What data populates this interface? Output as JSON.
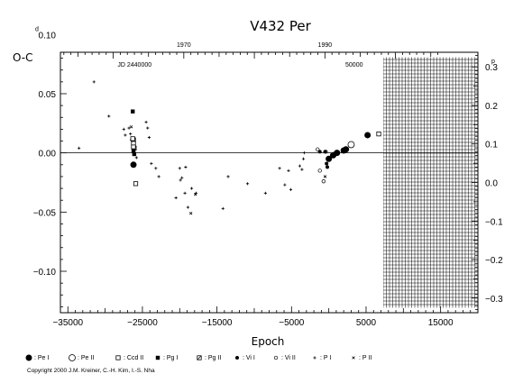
{
  "chart_data": {
    "type": "scatter",
    "title": "V432 Per",
    "xlabel": "Epoch",
    "ylabel": "O-C",
    "ylabel_unit": "d",
    "y2label_unit": "p",
    "xlim": [
      -36000,
      20000
    ],
    "ylim": [
      -0.135,
      0.085
    ],
    "y2lim": [
      -0.338,
      0.338
    ],
    "x_ticks": [
      -35000,
      -25000,
      -15000,
      -5000,
      5000,
      15000
    ],
    "x_tick_labels": [
      "−35000",
      "−25000",
      "−15000",
      "−5000",
      "5000",
      "15000"
    ],
    "y_ticks": [
      0.1,
      0.05,
      0.0,
      -0.05,
      -0.1
    ],
    "y_tick_labels": [
      "0.10",
      "0.05",
      "0.00",
      "−0.05",
      "−0.10"
    ],
    "y2_ticks": [
      0.3,
      0.2,
      0.1,
      0.0,
      -0.1,
      -0.2,
      -0.3
    ],
    "y2_tick_labels": [
      "0.3",
      "0.2",
      "0.1",
      "0.0",
      "−0.1",
      "−0.2",
      "−0.3"
    ],
    "top_axis": {
      "years": [
        {
          "value": 1970,
          "epoch": -19450
        },
        {
          "value": 1990,
          "epoch": -520
        }
      ],
      "jd": [
        {
          "label": "JD 2440000",
          "epoch": -26050
        },
        {
          "label": "50000",
          "epoch": 3400
        }
      ]
    },
    "future_hatch_from": 7300,
    "grid": false,
    "series": [
      {
        "name": "Pe I",
        "marker": "filled-circle",
        "points": [
          [
            -26200,
            -0.01
          ],
          [
            0,
            -0.005
          ],
          [
            600,
            -0.002
          ],
          [
            1100,
            0.0
          ],
          [
            2000,
            0.002
          ],
          [
            2300,
            0.003
          ],
          [
            5200,
            0.015
          ]
        ]
      },
      {
        "name": "Pe II",
        "marker": "open-circle",
        "points": [
          [
            3000,
            0.007
          ]
        ]
      },
      {
        "name": "Ccd II",
        "marker": "open-square",
        "points": [
          [
            -26300,
            0.012
          ],
          [
            -26200,
            0.008
          ],
          [
            -26200,
            0.005
          ],
          [
            -25900,
            -0.026
          ],
          [
            6700,
            0.016
          ]
        ]
      },
      {
        "name": "Pg I",
        "marker": "filled-square",
        "points": [
          [
            -26300,
            0.035
          ],
          [
            -26200,
            0.002
          ],
          [
            -26100,
            -0.001
          ]
        ]
      },
      {
        "name": "Pg II",
        "marker": "hatched-square",
        "points": [
          [
            -26200,
            0.011
          ],
          [
            -26100,
            0.004
          ]
        ]
      },
      {
        "name": "Vi I",
        "marker": "filled-dot",
        "points": [
          [
            -1200,
            0.001
          ],
          [
            -500,
            0.001
          ],
          [
            -300,
            -0.009
          ],
          [
            -200,
            -0.012
          ],
          [
            400,
            -0.002
          ]
        ]
      },
      {
        "name": "Vi II",
        "marker": "open-dot",
        "points": [
          [
            -1500,
            0.003
          ],
          [
            -1200,
            -0.015
          ],
          [
            -700,
            -0.024
          ],
          [
            -400,
            0.001
          ]
        ]
      },
      {
        "name": "P I",
        "marker": "plus",
        "points": [
          [
            -33500,
            0.004
          ],
          [
            -31500,
            0.06
          ],
          [
            -29500,
            0.031
          ],
          [
            -27500,
            0.02
          ],
          [
            -27300,
            0.015
          ],
          [
            -26800,
            0.021
          ],
          [
            -26600,
            0.016
          ],
          [
            -26500,
            0.011
          ],
          [
            -25800,
            -0.004
          ],
          [
            -24500,
            0.026
          ],
          [
            -24300,
            0.021
          ],
          [
            -24100,
            0.013
          ],
          [
            -23800,
            -0.009
          ],
          [
            -23200,
            -0.013
          ],
          [
            -22800,
            -0.02
          ],
          [
            -20500,
            -0.038
          ],
          [
            -20000,
            -0.013
          ],
          [
            -19900,
            -0.023
          ],
          [
            -19700,
            -0.021
          ],
          [
            -19300,
            -0.034
          ],
          [
            -19200,
            -0.012
          ],
          [
            -18900,
            -0.046
          ],
          [
            -18400,
            -0.03
          ],
          [
            -17800,
            -0.034
          ],
          [
            -14200,
            -0.047
          ],
          [
            -13500,
            -0.02
          ],
          [
            -10900,
            -0.026
          ],
          [
            -8500,
            -0.034
          ],
          [
            -6600,
            -0.013
          ],
          [
            -5900,
            -0.027
          ],
          [
            -5400,
            -0.015
          ],
          [
            -5100,
            -0.031
          ],
          [
            -3900,
            -0.011
          ],
          [
            -3600,
            -0.014
          ],
          [
            -3400,
            -0.005
          ],
          [
            -3300,
            0.0
          ]
        ]
      },
      {
        "name": "P II",
        "marker": "cross",
        "points": [
          [
            -18500,
            -0.051
          ],
          [
            -17900,
            -0.035
          ],
          [
            -26500,
            0.022
          ],
          [
            -500,
            -0.02
          ]
        ]
      }
    ],
    "legend": {
      "placement": "bottom",
      "entries": [
        {
          "marker": "filled-circle",
          "label": ": Pe I"
        },
        {
          "marker": "open-circle",
          "label": ": Pe II"
        },
        {
          "marker": "open-square",
          "label": ": Ccd II"
        },
        {
          "marker": "filled-square",
          "label": ": Pg I"
        },
        {
          "marker": "hatched-square",
          "label": ": Pg II"
        },
        {
          "marker": "filled-dot",
          "label": ": Vi I"
        },
        {
          "marker": "open-dot",
          "label": ": Vi II"
        },
        {
          "marker": "plus",
          "label": ": P I"
        },
        {
          "marker": "cross",
          "label": ": P II"
        }
      ]
    }
  },
  "copyright": "Copyright 2000 J.M. Kreiner, C.-H. Kim, I.-S. Nha"
}
